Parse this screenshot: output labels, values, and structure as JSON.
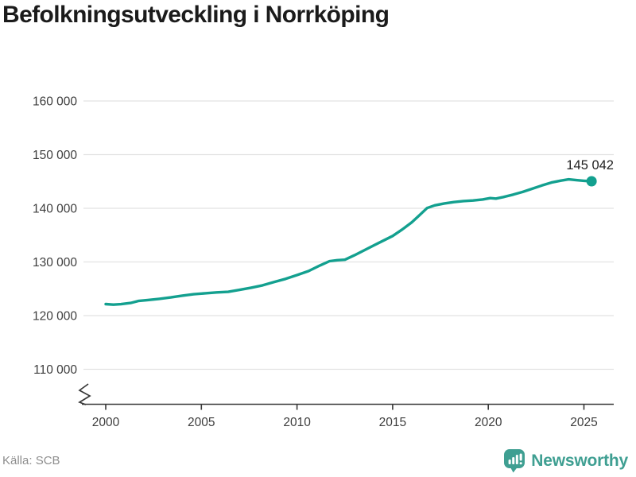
{
  "title": "Befolkningsutveckling i Norrköping",
  "source": "Källa: SCB",
  "branding": {
    "name": "Newsworthy",
    "icon": "newsworthy-bubble-chart-icon",
    "color": "#3f9f92"
  },
  "chart_data": {
    "type": "line",
    "title": "Befolkningsutveckling i Norrköping",
    "xlabel": "",
    "ylabel": "",
    "x_range": [
      1998.8,
      2026.6
    ],
    "y_range_values": [
      110000,
      160000
    ],
    "grid": "horizontal",
    "axis_break": true,
    "legend": "none",
    "line_color": "#13a08f",
    "grid_color": "#e2e2e2",
    "axis_color": "#383838",
    "tick_label_color": "#3d3d3d",
    "end_label_color": "#1f1f1f",
    "y_ticks": [
      {
        "value": 160000,
        "label": "160 000"
      },
      {
        "value": 150000,
        "label": "150 000"
      },
      {
        "value": 140000,
        "label": "140 000"
      },
      {
        "value": 130000,
        "label": "130 000"
      },
      {
        "value": 120000,
        "label": "120 000"
      },
      {
        "value": 110000,
        "label": "110 000"
      }
    ],
    "x_ticks": [
      {
        "value": 2000,
        "label": "2000"
      },
      {
        "value": 2005,
        "label": "2005"
      },
      {
        "value": 2010,
        "label": "2010"
      },
      {
        "value": 2015,
        "label": "2015"
      },
      {
        "value": 2020,
        "label": "2020"
      },
      {
        "value": 2025,
        "label": "2025"
      }
    ],
    "latest": {
      "label": "145 042",
      "year": 2025.4,
      "value": 145042
    },
    "series": [
      {
        "name": "Befolkning i Norrköping",
        "color": "#13a08f",
        "points": [
          [
            2000.0,
            122150
          ],
          [
            2000.4,
            122040
          ],
          [
            2000.8,
            122130
          ],
          [
            2001.3,
            122350
          ],
          [
            2001.7,
            122720
          ],
          [
            2002.2,
            122900
          ],
          [
            2002.8,
            123120
          ],
          [
            2003.4,
            123400
          ],
          [
            2004.0,
            123720
          ],
          [
            2004.6,
            123980
          ],
          [
            2005.2,
            124160
          ],
          [
            2005.8,
            124320
          ],
          [
            2006.4,
            124430
          ],
          [
            2007.0,
            124800
          ],
          [
            2007.6,
            125200
          ],
          [
            2008.2,
            125650
          ],
          [
            2008.8,
            126250
          ],
          [
            2009.4,
            126850
          ],
          [
            2010.0,
            127550
          ],
          [
            2010.6,
            128300
          ],
          [
            2011.2,
            129350
          ],
          [
            2011.7,
            130150
          ],
          [
            2012.1,
            130330
          ],
          [
            2012.5,
            130420
          ],
          [
            2013.0,
            131250
          ],
          [
            2013.5,
            132150
          ],
          [
            2014.0,
            133050
          ],
          [
            2014.5,
            133950
          ],
          [
            2015.0,
            134850
          ],
          [
            2015.5,
            136050
          ],
          [
            2016.0,
            137400
          ],
          [
            2016.4,
            138700
          ],
          [
            2016.8,
            140050
          ],
          [
            2017.2,
            140550
          ],
          [
            2017.7,
            140900
          ],
          [
            2018.2,
            141150
          ],
          [
            2018.7,
            141350
          ],
          [
            2019.2,
            141450
          ],
          [
            2019.7,
            141650
          ],
          [
            2020.1,
            141900
          ],
          [
            2020.4,
            141800
          ],
          [
            2020.8,
            142100
          ],
          [
            2021.3,
            142550
          ],
          [
            2021.8,
            143050
          ],
          [
            2022.3,
            143650
          ],
          [
            2022.8,
            144250
          ],
          [
            2023.3,
            144800
          ],
          [
            2023.8,
            145150
          ],
          [
            2024.2,
            145400
          ],
          [
            2024.6,
            145250
          ],
          [
            2025.0,
            145120
          ],
          [
            2025.4,
            145042
          ]
        ]
      }
    ]
  }
}
